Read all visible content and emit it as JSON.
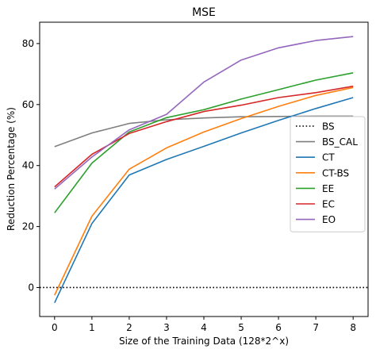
{
  "chart_data": {
    "type": "line",
    "title": "MSE",
    "xlabel": "Size of the Training Data (128*2^x)",
    "ylabel": "Reduction Percentage (%)",
    "x": [
      0,
      1,
      2,
      3,
      4,
      5,
      6,
      7,
      8
    ],
    "xlim": [
      -0.4,
      8.4
    ],
    "ylim": [
      -9.5,
      87
    ],
    "xticks": [
      0,
      1,
      2,
      3,
      4,
      5,
      6,
      7,
      8
    ],
    "yticks": [
      0,
      20,
      40,
      60,
      80
    ],
    "grid": false,
    "legend_position": "right",
    "reference_line": {
      "name": "BS",
      "y": 0,
      "color": "#000000",
      "style": "dotted"
    },
    "series": [
      {
        "name": "BS_CAL",
        "color": "#7f7f7f",
        "values": [
          46.2,
          50.7,
          53.8,
          55.0,
          55.6,
          56.0,
          56.1,
          56.2,
          56.2
        ]
      },
      {
        "name": "CT",
        "color": "#1f77b4",
        "values": [
          -5.0,
          21.0,
          36.9,
          42.0,
          46.3,
          50.7,
          54.8,
          58.7,
          62.3
        ]
      },
      {
        "name": "CT-BS",
        "color": "#ff7f0e",
        "values": [
          -2.5,
          23.4,
          38.8,
          45.8,
          51.0,
          55.4,
          59.4,
          63.0,
          65.6
        ]
      },
      {
        "name": "EE",
        "color": "#2ca02c",
        "values": [
          24.5,
          40.8,
          51.0,
          55.7,
          58.3,
          61.8,
          64.9,
          68.0,
          70.4
        ]
      },
      {
        "name": "EC",
        "color": "#d62728",
        "values": [
          33.0,
          43.7,
          50.5,
          54.4,
          57.7,
          59.8,
          62.3,
          63.9,
          66.0
        ]
      },
      {
        "name": "EO",
        "color": "#9467bd",
        "values": [
          32.3,
          42.8,
          51.7,
          56.8,
          67.4,
          74.6,
          78.6,
          81.0,
          82.3
        ]
      }
    ]
  }
}
